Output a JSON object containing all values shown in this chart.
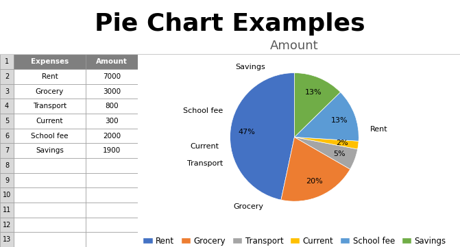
{
  "title": "Pie Chart Examples",
  "pie_title": "Amount",
  "labels": [
    "Rent",
    "Grocery",
    "Transport",
    "Current",
    "School fee",
    "Savings"
  ],
  "values": [
    7000,
    3000,
    800,
    300,
    2000,
    1900
  ],
  "colors": [
    "#4472C4",
    "#ED7D31",
    "#A5A5A5",
    "#FFC000",
    "#5B9BD5",
    "#70AD47"
  ],
  "autopct_labels": [
    "47%",
    "20%",
    "5%",
    "2%",
    "13%",
    "13%"
  ],
  "table_headers": [
    "Expenses",
    "Amount"
  ],
  "table_rows": [
    [
      "Rent",
      "7000"
    ],
    [
      "Grocery",
      "3000"
    ],
    [
      "Transport",
      "800"
    ],
    [
      "Current",
      "300"
    ],
    [
      "School fee",
      "2000"
    ],
    [
      "Savings",
      "1900"
    ]
  ],
  "row_numbers": [
    1,
    2,
    3,
    4,
    5,
    6,
    7,
    8,
    9,
    10,
    11,
    12,
    13
  ],
  "header_bg": "#7F7F7F",
  "header_fg": "#FFFFFF",
  "cell_bg": "#FFFFFF",
  "grid_color": "#000000",
  "title_fontsize": 26,
  "pie_title_fontsize": 13,
  "legend_fontsize": 8.5,
  "label_fontsize": 8,
  "startangle": 90,
  "background_color": "#FFFFFF"
}
